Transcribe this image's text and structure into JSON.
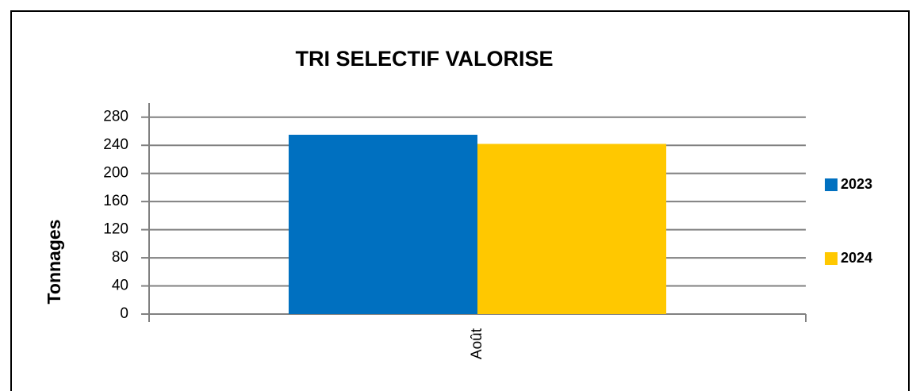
{
  "chart_data": {
    "type": "bar",
    "title": "TRI SELECTIF VALORISE",
    "y_label": "Tonnages",
    "categories": [
      "Août"
    ],
    "series": [
      {
        "name": "2023",
        "color": "#0070c0",
        "values": [
          255
        ]
      },
      {
        "name": "2024",
        "color": "#ffc800",
        "values": [
          242
        ]
      }
    ],
    "ylim": [
      0,
      300
    ],
    "yticks": [
      0,
      40,
      80,
      120,
      160,
      200,
      240,
      280
    ],
    "grid": true,
    "legend": "right"
  }
}
